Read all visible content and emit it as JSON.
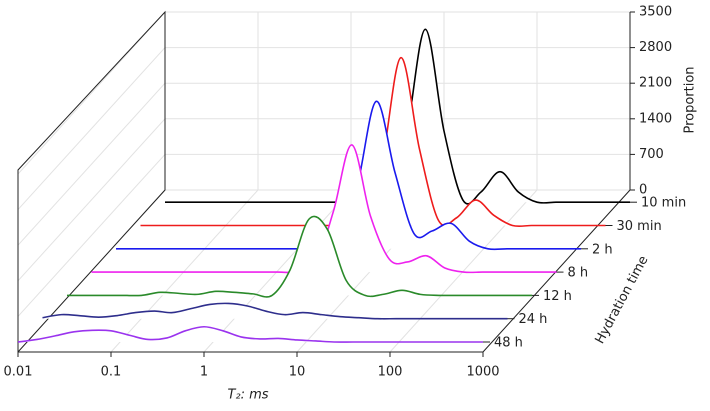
{
  "chart_data": {
    "type": "waterfall3d",
    "x_label": "T₂: ms",
    "y_label": "Hydration time",
    "z_label": "Proportion",
    "log_x": true,
    "grid": true,
    "xlim": [
      0.01,
      1000
    ],
    "xticks": [
      0.01,
      0.1,
      1,
      10,
      100,
      1000
    ],
    "zlim": [
      0,
      3500
    ],
    "zticks": [
      0,
      700,
      1400,
      2100,
      2800,
      3500
    ],
    "x": [
      0.01,
      0.016,
      0.025,
      0.04,
      0.063,
      0.1,
      0.16,
      0.25,
      0.4,
      0.63,
      1,
      1.6,
      2.5,
      4,
      6.3,
      10,
      16,
      25,
      40,
      63,
      100,
      160,
      250,
      400,
      630,
      1000
    ],
    "series": [
      {
        "name": "10 min",
        "color": "#000000",
        "values": [
          0,
          0,
          0,
          0,
          0,
          0,
          0,
          0,
          0,
          0,
          0,
          0,
          0,
          1400,
          3400,
          1400,
          40,
          200,
          600,
          200,
          0,
          0,
          0,
          0,
          0,
          0
        ]
      },
      {
        "name": "30 min",
        "color": "#ee1c1c",
        "values": [
          0,
          0,
          0,
          0,
          0,
          0,
          0,
          0,
          0,
          0,
          0,
          0,
          0,
          1300,
          3300,
          1500,
          100,
          150,
          500,
          200,
          0,
          0,
          0,
          0,
          0,
          0
        ]
      },
      {
        "name": "2 h",
        "color": "#1a1aee",
        "values": [
          0,
          0,
          0,
          0,
          0,
          0,
          0,
          0,
          0,
          0,
          0,
          0,
          0,
          1300,
          2900,
          1500,
          300,
          350,
          500,
          150,
          0,
          0,
          0,
          0,
          0,
          0
        ]
      },
      {
        "name": "8 h",
        "color": "#ee22ee",
        "values": [
          0,
          0,
          0,
          0,
          0,
          0,
          0,
          0,
          0,
          0,
          0,
          0,
          100,
          1200,
          2500,
          1100,
          250,
          200,
          320,
          80,
          0,
          0,
          0,
          0,
          0,
          0
        ]
      },
      {
        "name": "12 h",
        "color": "#2a8a2a",
        "values": [
          0,
          0,
          0,
          0,
          0,
          60,
          40,
          20,
          80,
          60,
          30,
          0,
          500,
          1500,
          1300,
          300,
          0,
          20,
          100,
          20,
          0,
          0,
          0,
          0,
          0,
          0
        ]
      },
      {
        "name": "24 h",
        "color": "#2e2e8c",
        "values": [
          20,
          80,
          60,
          30,
          60,
          120,
          150,
          120,
          200,
          280,
          300,
          250,
          150,
          80,
          120,
          80,
          40,
          20,
          0,
          0,
          0,
          0,
          0,
          0,
          0,
          0
        ]
      },
      {
        "name": "48 h",
        "color": "#9a33ee",
        "values": [
          0,
          50,
          120,
          200,
          230,
          220,
          130,
          50,
          80,
          220,
          300,
          220,
          100,
          60,
          70,
          40,
          20,
          0,
          0,
          0,
          0,
          0,
          0,
          0,
          0,
          0
        ]
      }
    ]
  }
}
